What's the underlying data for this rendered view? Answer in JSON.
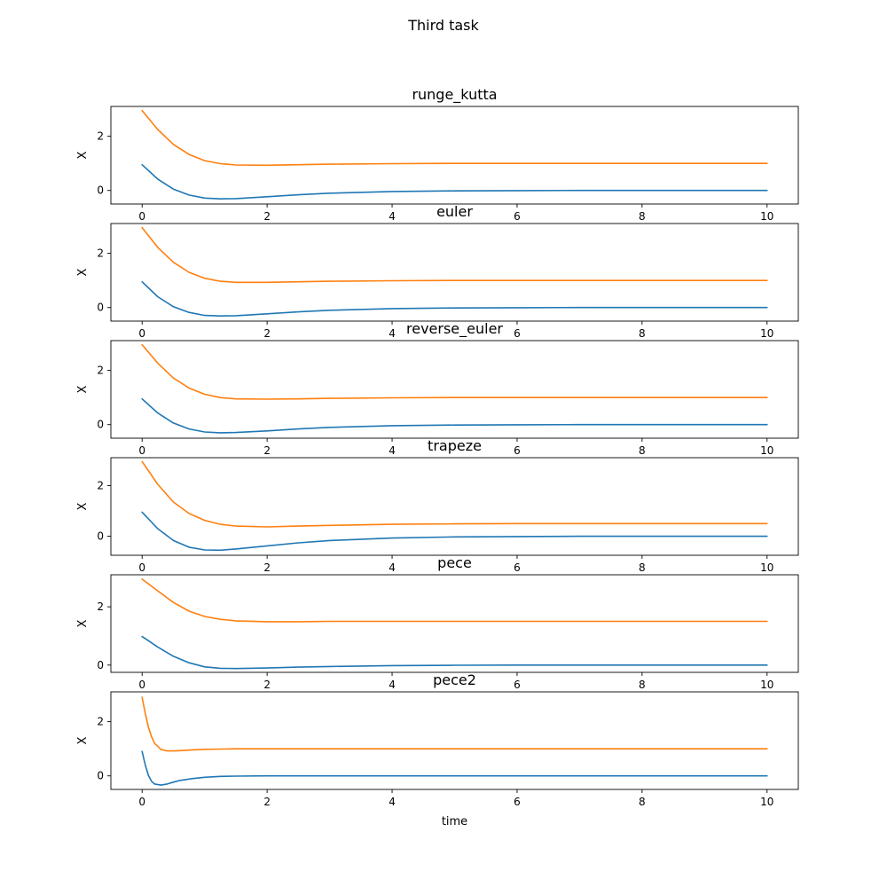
{
  "figure": {
    "title": "Third task"
  },
  "chart_data": [
    {
      "type": "line",
      "title": "runge_kutta",
      "xlabel": "",
      "ylabel": "X",
      "xlim": [
        -0.5,
        10.5
      ],
      "ylim": [
        -0.5,
        3.1
      ],
      "xticks": [
        0,
        2,
        4,
        6,
        8,
        10
      ],
      "yticks": [
        0,
        2
      ],
      "grid": false,
      "series": [
        {
          "color": "#1f77b4",
          "x": [
            0,
            0.25,
            0.5,
            0.75,
            1,
            1.25,
            1.5,
            2,
            2.5,
            3,
            4,
            5,
            6,
            7,
            8,
            9,
            10
          ],
          "values": [
            0.95,
            0.42,
            0.05,
            -0.17,
            -0.28,
            -0.31,
            -0.3,
            -0.23,
            -0.16,
            -0.1,
            -0.04,
            -0.015,
            -0.005,
            0,
            0,
            0,
            0
          ]
        },
        {
          "color": "#ff7f0e",
          "x": [
            0,
            0.25,
            0.5,
            0.75,
            1,
            1.25,
            1.5,
            2,
            2.5,
            3,
            4,
            5,
            6,
            7,
            8,
            9,
            10
          ],
          "values": [
            2.95,
            2.25,
            1.7,
            1.33,
            1.1,
            0.99,
            0.94,
            0.93,
            0.95,
            0.97,
            0.99,
            1.0,
            1.0,
            1.0,
            1.0,
            1.0,
            1.0
          ]
        }
      ]
    },
    {
      "type": "line",
      "title": "euler",
      "xlabel": "",
      "ylabel": "X",
      "xlim": [
        -0.5,
        10.5
      ],
      "ylim": [
        -0.5,
        3.1
      ],
      "xticks": [
        0,
        2,
        4,
        6,
        8,
        10
      ],
      "yticks": [
        0,
        2
      ],
      "grid": false,
      "series": [
        {
          "color": "#1f77b4",
          "x": [
            0,
            0.25,
            0.5,
            0.75,
            1,
            1.25,
            1.5,
            2,
            2.5,
            3,
            4,
            5,
            6,
            7,
            8,
            9,
            10
          ],
          "values": [
            0.95,
            0.4,
            0.03,
            -0.18,
            -0.29,
            -0.31,
            -0.3,
            -0.23,
            -0.16,
            -0.1,
            -0.04,
            -0.015,
            -0.005,
            0,
            0,
            0,
            0
          ]
        },
        {
          "color": "#ff7f0e",
          "x": [
            0,
            0.25,
            0.5,
            0.75,
            1,
            1.25,
            1.5,
            2,
            2.5,
            3,
            4,
            5,
            6,
            7,
            8,
            9,
            10
          ],
          "values": [
            2.95,
            2.22,
            1.67,
            1.3,
            1.08,
            0.97,
            0.93,
            0.93,
            0.95,
            0.97,
            0.99,
            1.0,
            1.0,
            1.0,
            1.0,
            1.0,
            1.0
          ]
        }
      ]
    },
    {
      "type": "line",
      "title": "reverse_euler",
      "xlabel": "",
      "ylabel": "X",
      "xlim": [
        -0.5,
        10.5
      ],
      "ylim": [
        -0.5,
        3.1
      ],
      "xticks": [
        0,
        2,
        4,
        6,
        8,
        10
      ],
      "yticks": [
        0,
        2
      ],
      "grid": false,
      "series": [
        {
          "color": "#1f77b4",
          "x": [
            0,
            0.25,
            0.5,
            0.75,
            1,
            1.25,
            1.5,
            2,
            2.5,
            3,
            4,
            5,
            6,
            7,
            8,
            9,
            10
          ],
          "values": [
            0.95,
            0.43,
            0.06,
            -0.16,
            -0.27,
            -0.3,
            -0.29,
            -0.23,
            -0.16,
            -0.1,
            -0.04,
            -0.015,
            -0.005,
            0,
            0,
            0,
            0
          ]
        },
        {
          "color": "#ff7f0e",
          "x": [
            0,
            0.25,
            0.5,
            0.75,
            1,
            1.25,
            1.5,
            2,
            2.5,
            3,
            4,
            5,
            6,
            7,
            8,
            9,
            10
          ],
          "values": [
            2.95,
            2.27,
            1.72,
            1.35,
            1.12,
            1.0,
            0.95,
            0.94,
            0.95,
            0.97,
            0.99,
            1.0,
            1.0,
            1.0,
            1.0,
            1.0,
            1.0
          ]
        }
      ]
    },
    {
      "type": "line",
      "title": "trapeze",
      "xlabel": "",
      "ylabel": "X",
      "xlim": [
        -0.5,
        10.5
      ],
      "ylim": [
        -0.75,
        3.1
      ],
      "xticks": [
        0,
        2,
        4,
        6,
        8,
        10
      ],
      "yticks": [
        0,
        2
      ],
      "grid": false,
      "series": [
        {
          "color": "#1f77b4",
          "x": [
            0,
            0.25,
            0.5,
            0.75,
            1,
            1.25,
            1.5,
            2,
            2.5,
            3,
            4,
            5,
            6,
            7,
            8,
            9,
            10
          ],
          "values": [
            0.95,
            0.3,
            -0.17,
            -0.43,
            -0.54,
            -0.55,
            -0.5,
            -0.38,
            -0.26,
            -0.17,
            -0.07,
            -0.025,
            -0.01,
            0,
            0,
            0,
            0
          ]
        },
        {
          "color": "#ff7f0e",
          "x": [
            0,
            0.25,
            0.5,
            0.75,
            1,
            1.25,
            1.5,
            2,
            2.5,
            3,
            4,
            5,
            6,
            7,
            8,
            9,
            10
          ],
          "values": [
            2.95,
            2.05,
            1.35,
            0.9,
            0.63,
            0.47,
            0.4,
            0.37,
            0.4,
            0.43,
            0.47,
            0.49,
            0.5,
            0.5,
            0.5,
            0.5,
            0.5
          ]
        }
      ]
    },
    {
      "type": "line",
      "title": "pece",
      "xlabel": "",
      "ylabel": "X",
      "xlim": [
        -0.5,
        10.5
      ],
      "ylim": [
        -0.25,
        3.1
      ],
      "xticks": [
        0,
        2,
        4,
        6,
        8,
        10
      ],
      "yticks": [
        0,
        2
      ],
      "grid": false,
      "series": [
        {
          "color": "#1f77b4",
          "x": [
            0,
            0.25,
            0.5,
            0.75,
            1,
            1.25,
            1.5,
            2,
            2.5,
            3,
            4,
            5,
            6,
            7,
            8,
            9,
            10
          ],
          "values": [
            0.98,
            0.62,
            0.3,
            0.08,
            -0.06,
            -0.11,
            -0.12,
            -0.1,
            -0.07,
            -0.05,
            -0.02,
            -0.005,
            0,
            0,
            0,
            0,
            0
          ]
        },
        {
          "color": "#ff7f0e",
          "x": [
            0,
            0.25,
            0.5,
            0.75,
            1,
            1.25,
            1.5,
            2,
            2.5,
            3,
            4,
            5,
            6,
            7,
            8,
            9,
            10
          ],
          "values": [
            2.95,
            2.55,
            2.15,
            1.85,
            1.67,
            1.57,
            1.52,
            1.49,
            1.49,
            1.5,
            1.5,
            1.5,
            1.5,
            1.5,
            1.5,
            1.5,
            1.5
          ]
        }
      ]
    },
    {
      "type": "line",
      "title": "pece2",
      "xlabel": "time",
      "ylabel": "X",
      "xlim": [
        -0.5,
        10.5
      ],
      "ylim": [
        -0.5,
        3.1
      ],
      "xticks": [
        0,
        2,
        4,
        6,
        8,
        10
      ],
      "yticks": [
        0,
        2
      ],
      "grid": false,
      "series": [
        {
          "color": "#1f77b4",
          "x": [
            0,
            0.05,
            0.1,
            0.15,
            0.2,
            0.3,
            0.4,
            0.5,
            0.6,
            0.8,
            1,
            1.25,
            1.5,
            2,
            3,
            4,
            5,
            6,
            7,
            8,
            9,
            10
          ],
          "values": [
            0.9,
            0.4,
            0.02,
            -0.2,
            -0.3,
            -0.34,
            -0.3,
            -0.23,
            -0.17,
            -0.1,
            -0.05,
            -0.02,
            -0.01,
            0,
            0,
            0,
            0,
            0,
            0,
            0,
            0,
            0
          ]
        },
        {
          "color": "#ff7f0e",
          "x": [
            0,
            0.05,
            0.1,
            0.15,
            0.2,
            0.3,
            0.4,
            0.5,
            0.6,
            0.8,
            1,
            1.25,
            1.5,
            2,
            3,
            4,
            5,
            6,
            7,
            8,
            9,
            10
          ],
          "values": [
            2.9,
            2.3,
            1.8,
            1.45,
            1.2,
            0.98,
            0.92,
            0.92,
            0.93,
            0.96,
            0.98,
            0.99,
            1.0,
            1.0,
            1.0,
            1.0,
            1.0,
            1.0,
            1.0,
            1.0,
            1.0,
            1.0
          ]
        }
      ]
    }
  ]
}
